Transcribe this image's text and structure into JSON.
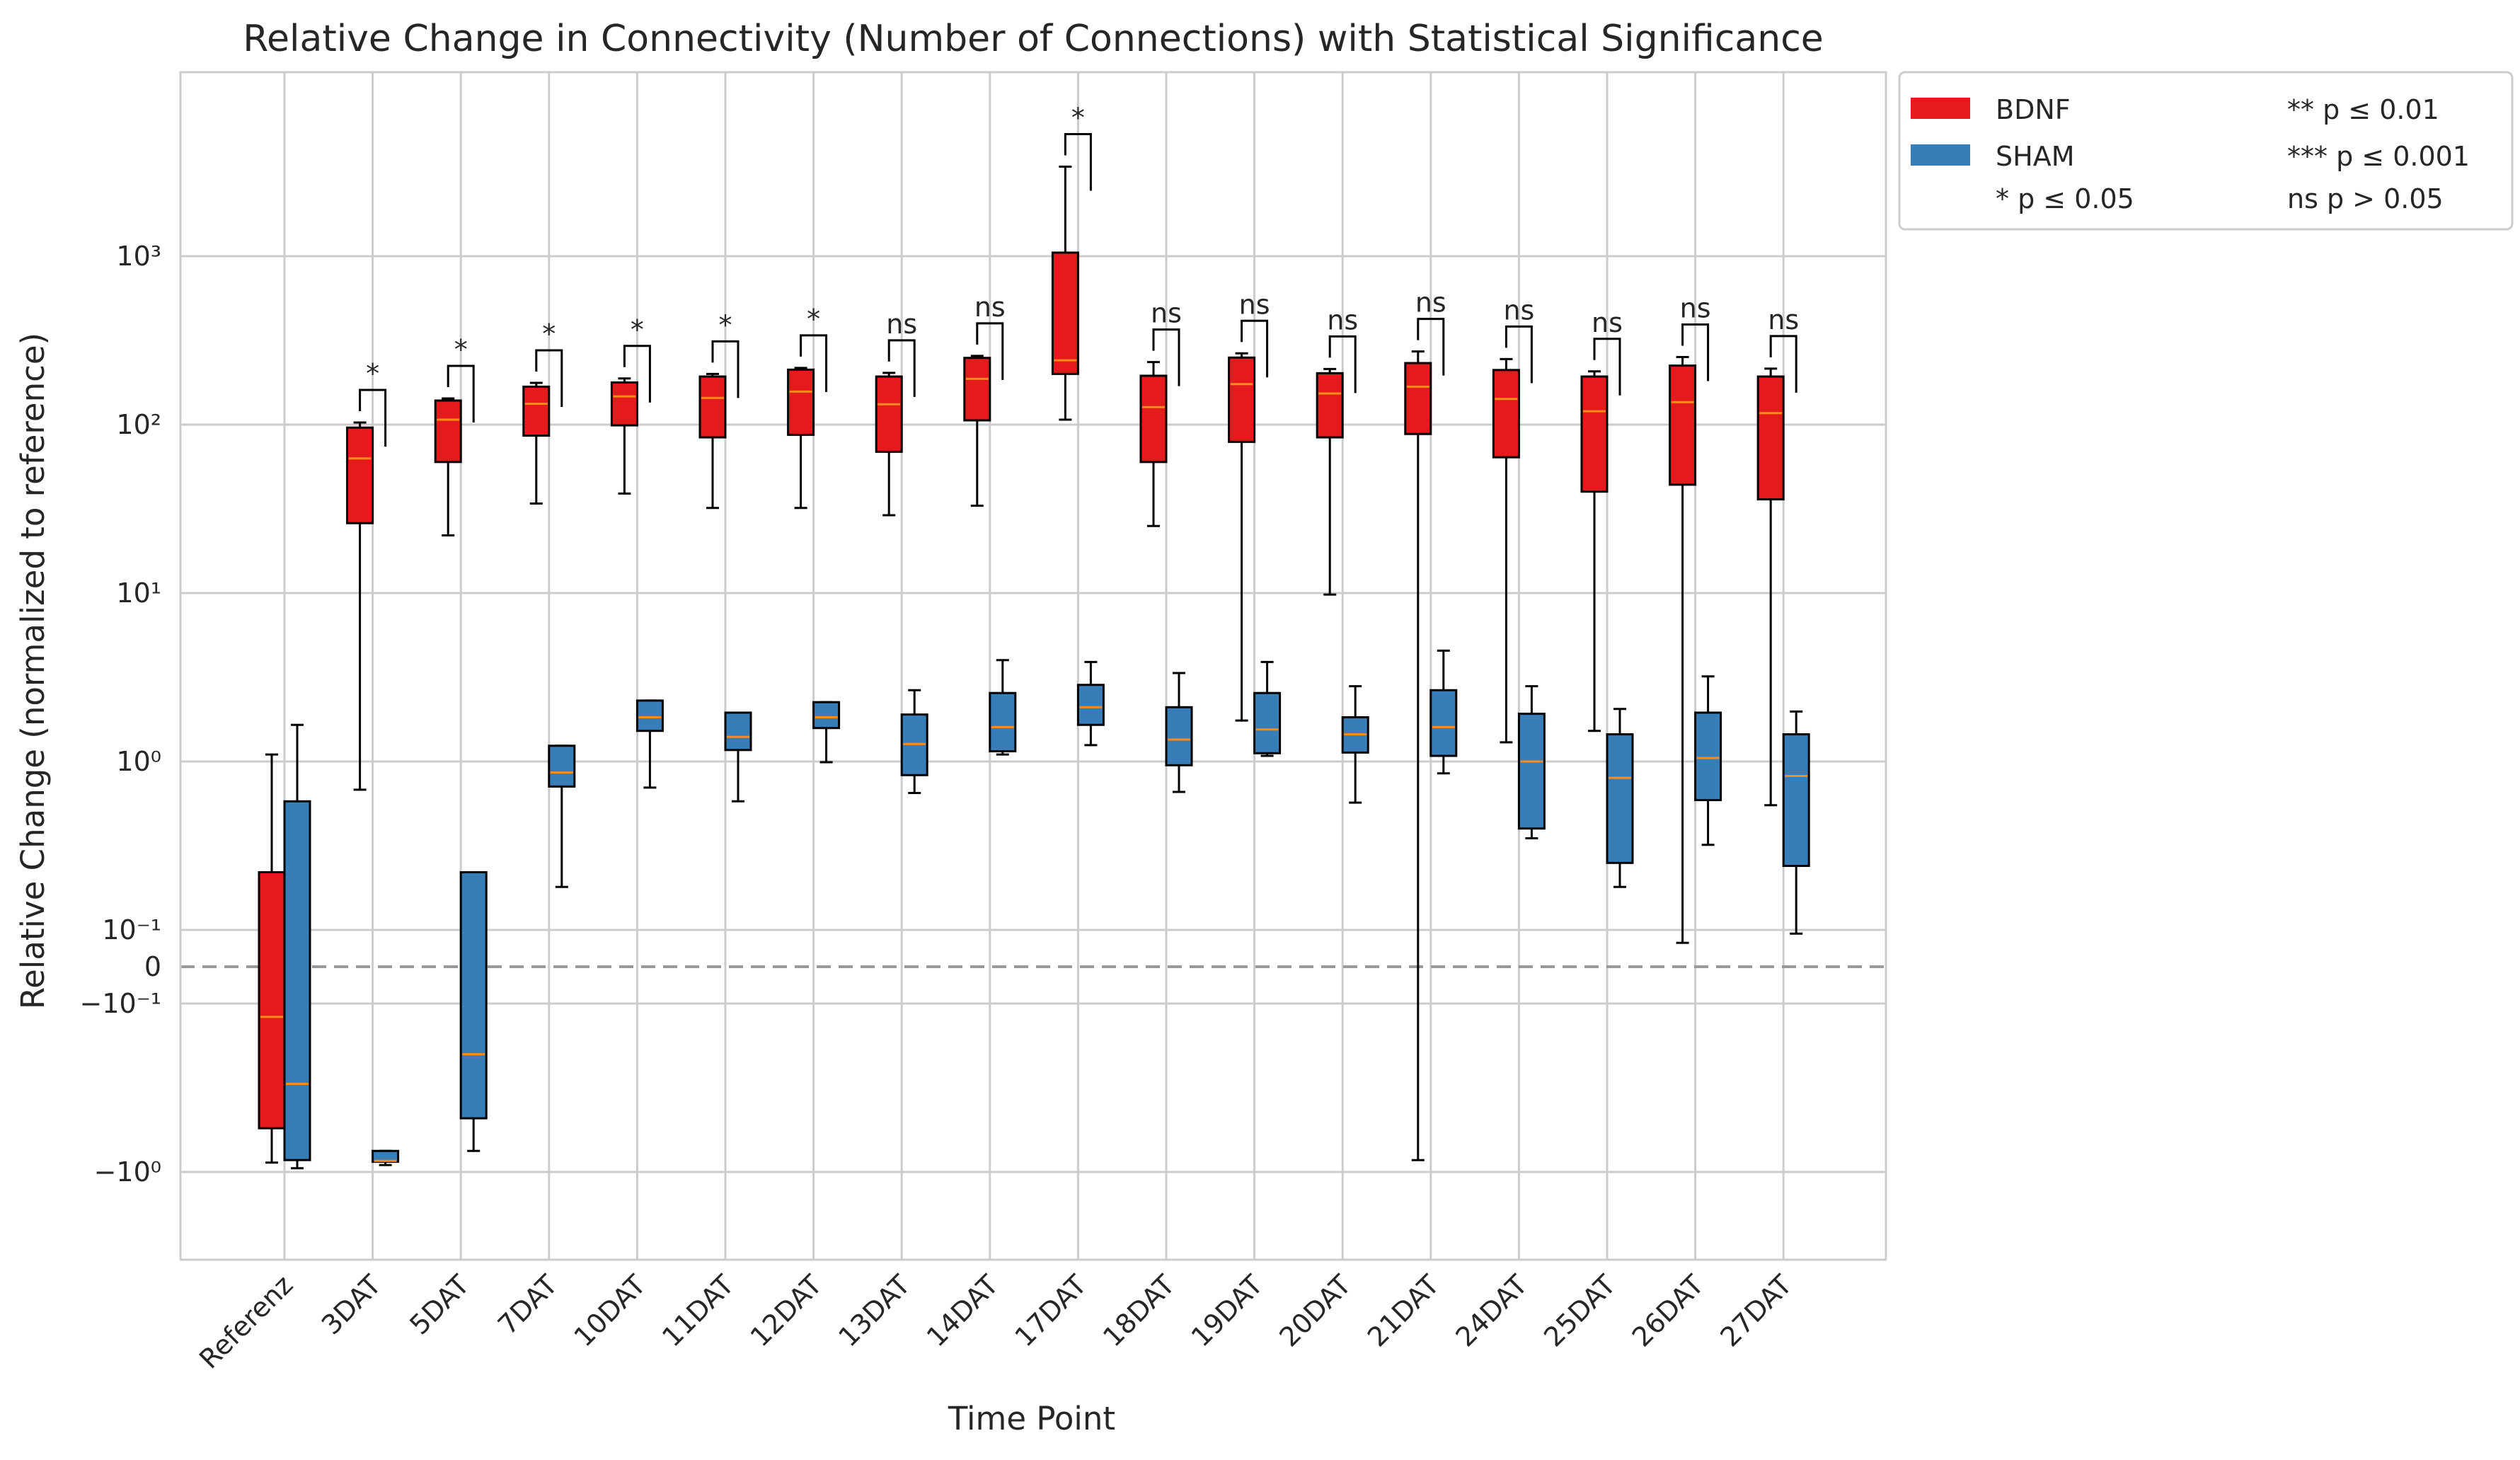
{
  "chart_data": {
    "type": "box",
    "title": "Relative Change in Connectivity (Number of Connections) with Statistical Significance",
    "xlabel": "Time Point",
    "ylabel": "Relative Change (normalized to reference)",
    "yscale": "symlog",
    "grid": true,
    "legend_position": "outside-top-right",
    "ytick_labels": [
      "10³",
      "10²",
      "10¹",
      "10⁰",
      "10⁻¹",
      "0",
      "−10⁻¹",
      "−10⁰"
    ],
    "categories": [
      "Referenz",
      "3DAT",
      "5DAT",
      "7DAT",
      "10DAT",
      "11DAT",
      "12DAT",
      "13DAT",
      "14DAT",
      "17DAT",
      "18DAT",
      "19DAT",
      "20DAT",
      "21DAT",
      "24DAT",
      "25DAT",
      "26DAT",
      "27DAT"
    ],
    "series": [
      {
        "name": "BDNF",
        "color": "#e41a1c",
        "boxes": [
          {
            "min": -0.88,
            "q1": -0.55,
            "median": -0.12,
            "q3": 0.22,
            "max": 1.1
          },
          {
            "min": 0.68,
            "q1": 26,
            "median": 63,
            "q3": 96,
            "max": 103
          },
          {
            "min": 22,
            "q1": 60,
            "median": 107,
            "q3": 139,
            "max": 143
          },
          {
            "min": 34,
            "q1": 86,
            "median": 133,
            "q3": 168,
            "max": 177
          },
          {
            "min": 39,
            "q1": 99,
            "median": 147,
            "q3": 178,
            "max": 188
          },
          {
            "min": 32,
            "q1": 84,
            "median": 144,
            "q3": 193,
            "max": 200
          },
          {
            "min": 32,
            "q1": 87,
            "median": 157,
            "q3": 212,
            "max": 217
          },
          {
            "min": 29,
            "q1": 69,
            "median": 132,
            "q3": 193,
            "max": 203
          },
          {
            "min": 33,
            "q1": 106,
            "median": 187,
            "q3": 249,
            "max": 256
          },
          {
            "min": 107,
            "q1": 200,
            "median": 241,
            "q3": 1050,
            "max": 3400
          },
          {
            "min": 25,
            "q1": 60,
            "median": 127,
            "q3": 195,
            "max": 235
          },
          {
            "min": 1.75,
            "q1": 79,
            "median": 174,
            "q3": 250,
            "max": 265
          },
          {
            "min": 9.8,
            "q1": 84,
            "median": 153,
            "q3": 202,
            "max": 214
          },
          {
            "min": -0.85,
            "q1": 88,
            "median": 168,
            "q3": 232,
            "max": 272
          },
          {
            "min": 1.3,
            "q1": 64,
            "median": 142,
            "q3": 211,
            "max": 245
          },
          {
            "min": 1.52,
            "q1": 40,
            "median": 120,
            "q3": 193,
            "max": 207
          },
          {
            "min": 0.065,
            "q1": 44,
            "median": 136,
            "q3": 224,
            "max": 252
          },
          {
            "min": 0.55,
            "q1": 36,
            "median": 117,
            "q3": 193,
            "max": 215
          }
        ]
      },
      {
        "name": "SHAM",
        "color": "#377eb8",
        "boxes": [
          {
            "min": -0.95,
            "q1": -0.85,
            "median": -0.3,
            "q3": 0.58,
            "max": 1.65
          },
          {
            "min": -0.91,
            "q1": -0.87,
            "median": -0.86,
            "q3": -0.75,
            "max": -0.75
          },
          {
            "min": -0.75,
            "q1": -0.48,
            "median": -0.2,
            "q3": 0.22,
            "max": 0.22
          },
          {
            "min": 0.18,
            "q1": 0.71,
            "median": 0.86,
            "q3": 1.24,
            "max": 1.24
          },
          {
            "min": 0.7,
            "q1": 1.52,
            "median": 1.83,
            "q3": 2.3,
            "max": 2.3
          },
          {
            "min": 0.58,
            "q1": 1.17,
            "median": 1.4,
            "q3": 1.95,
            "max": 1.95
          },
          {
            "min": 0.99,
            "q1": 1.58,
            "median": 1.83,
            "q3": 2.25,
            "max": 2.25
          },
          {
            "min": 0.65,
            "q1": 0.83,
            "median": 1.27,
            "q3": 1.9,
            "max": 2.65
          },
          {
            "min": 1.1,
            "q1": 1.15,
            "median": 1.6,
            "q3": 2.55,
            "max": 4.0
          },
          {
            "min": 1.25,
            "q1": 1.65,
            "median": 2.1,
            "q3": 2.85,
            "max": 3.9
          },
          {
            "min": 0.66,
            "q1": 0.95,
            "median": 1.35,
            "q3": 2.1,
            "max": 3.35
          },
          {
            "min": 1.08,
            "q1": 1.12,
            "median": 1.55,
            "q3": 2.55,
            "max": 3.9
          },
          {
            "min": 0.57,
            "q1": 1.13,
            "median": 1.45,
            "q3": 1.83,
            "max": 2.8
          },
          {
            "min": 0.85,
            "q1": 1.08,
            "median": 1.6,
            "q3": 2.65,
            "max": 4.55
          },
          {
            "min": 0.35,
            "q1": 0.4,
            "median": 1.0,
            "q3": 1.92,
            "max": 2.8
          },
          {
            "min": 0.18,
            "q1": 0.25,
            "median": 0.8,
            "q3": 1.45,
            "max": 2.05
          },
          {
            "min": 0.32,
            "q1": 0.59,
            "median": 1.05,
            "q3": 1.95,
            "max": 3.2
          },
          {
            "min": 0.09,
            "q1": 0.24,
            "median": 0.82,
            "q3": 1.45,
            "max": 1.98
          }
        ]
      }
    ],
    "significance": [
      {
        "category": "3DAT",
        "label": "*"
      },
      {
        "category": "5DAT",
        "label": "*"
      },
      {
        "category": "7DAT",
        "label": "*"
      },
      {
        "category": "10DAT",
        "label": "*"
      },
      {
        "category": "11DAT",
        "label": "*"
      },
      {
        "category": "12DAT",
        "label": "*"
      },
      {
        "category": "13DAT",
        "label": "ns"
      },
      {
        "category": "14DAT",
        "label": "ns"
      },
      {
        "category": "17DAT",
        "label": "*"
      },
      {
        "category": "18DAT",
        "label": "ns"
      },
      {
        "category": "19DAT",
        "label": "ns"
      },
      {
        "category": "20DAT",
        "label": "ns"
      },
      {
        "category": "21DAT",
        "label": "ns"
      },
      {
        "category": "24DAT",
        "label": "ns"
      },
      {
        "category": "25DAT",
        "label": "ns"
      },
      {
        "category": "26DAT",
        "label": "ns"
      },
      {
        "category": "27DAT",
        "label": "ns"
      }
    ],
    "reference_line": {
      "y": 0,
      "style": "dashed",
      "color": "#999999"
    },
    "legend": {
      "entries": [
        {
          "label": "BDNF",
          "color": "#e41a1c"
        },
        {
          "label": "SHAM",
          "color": "#377eb8"
        }
      ],
      "notes": [
        "* p ≤ 0.05",
        "** p ≤ 0.01",
        "*** p ≤ 0.001",
        "ns p > 0.05"
      ]
    }
  }
}
